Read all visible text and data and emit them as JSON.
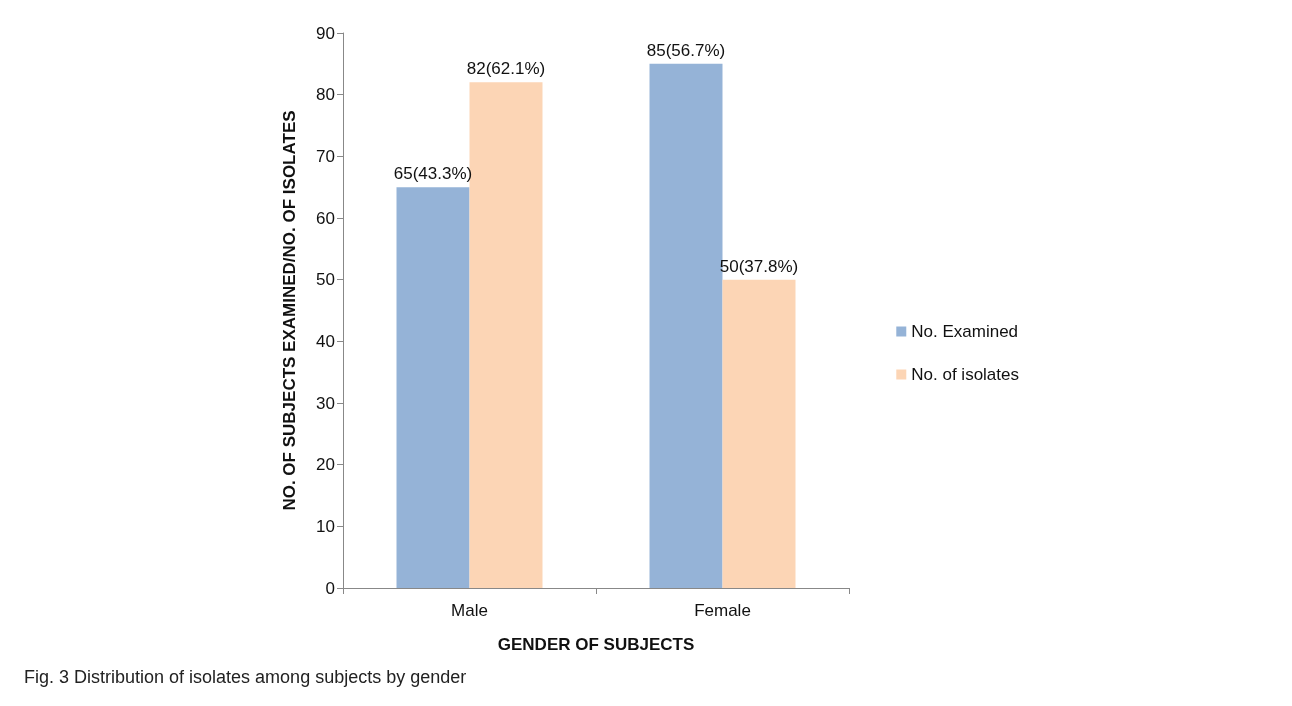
{
  "chart_data": {
    "type": "bar",
    "categories": [
      "Male",
      "Female"
    ],
    "series": [
      {
        "name": "No. Examined",
        "color": "#95b3d7",
        "values": [
          65,
          85
        ],
        "value_labels": [
          "65(43.3%)",
          "85(56.7%)"
        ]
      },
      {
        "name": "No. of isolates",
        "color": "#fcd5b5",
        "values": [
          82,
          50
        ],
        "value_labels": [
          "82(62.1%)",
          "50(37.8%)"
        ]
      }
    ],
    "xlabel": "GENDER OF SUBJECTS",
    "ylabel": "NO. OF SUBJECTS EXAMINED/NO. OF ISOLATES",
    "ylim": [
      0,
      90
    ],
    "yticks": [
      0,
      10,
      20,
      30,
      40,
      50,
      60,
      70,
      80,
      90
    ],
    "grid": false,
    "legend": "right",
    "annotations": [
      "Fig. 3 Distribution of isolates among subjects by gender"
    ]
  }
}
